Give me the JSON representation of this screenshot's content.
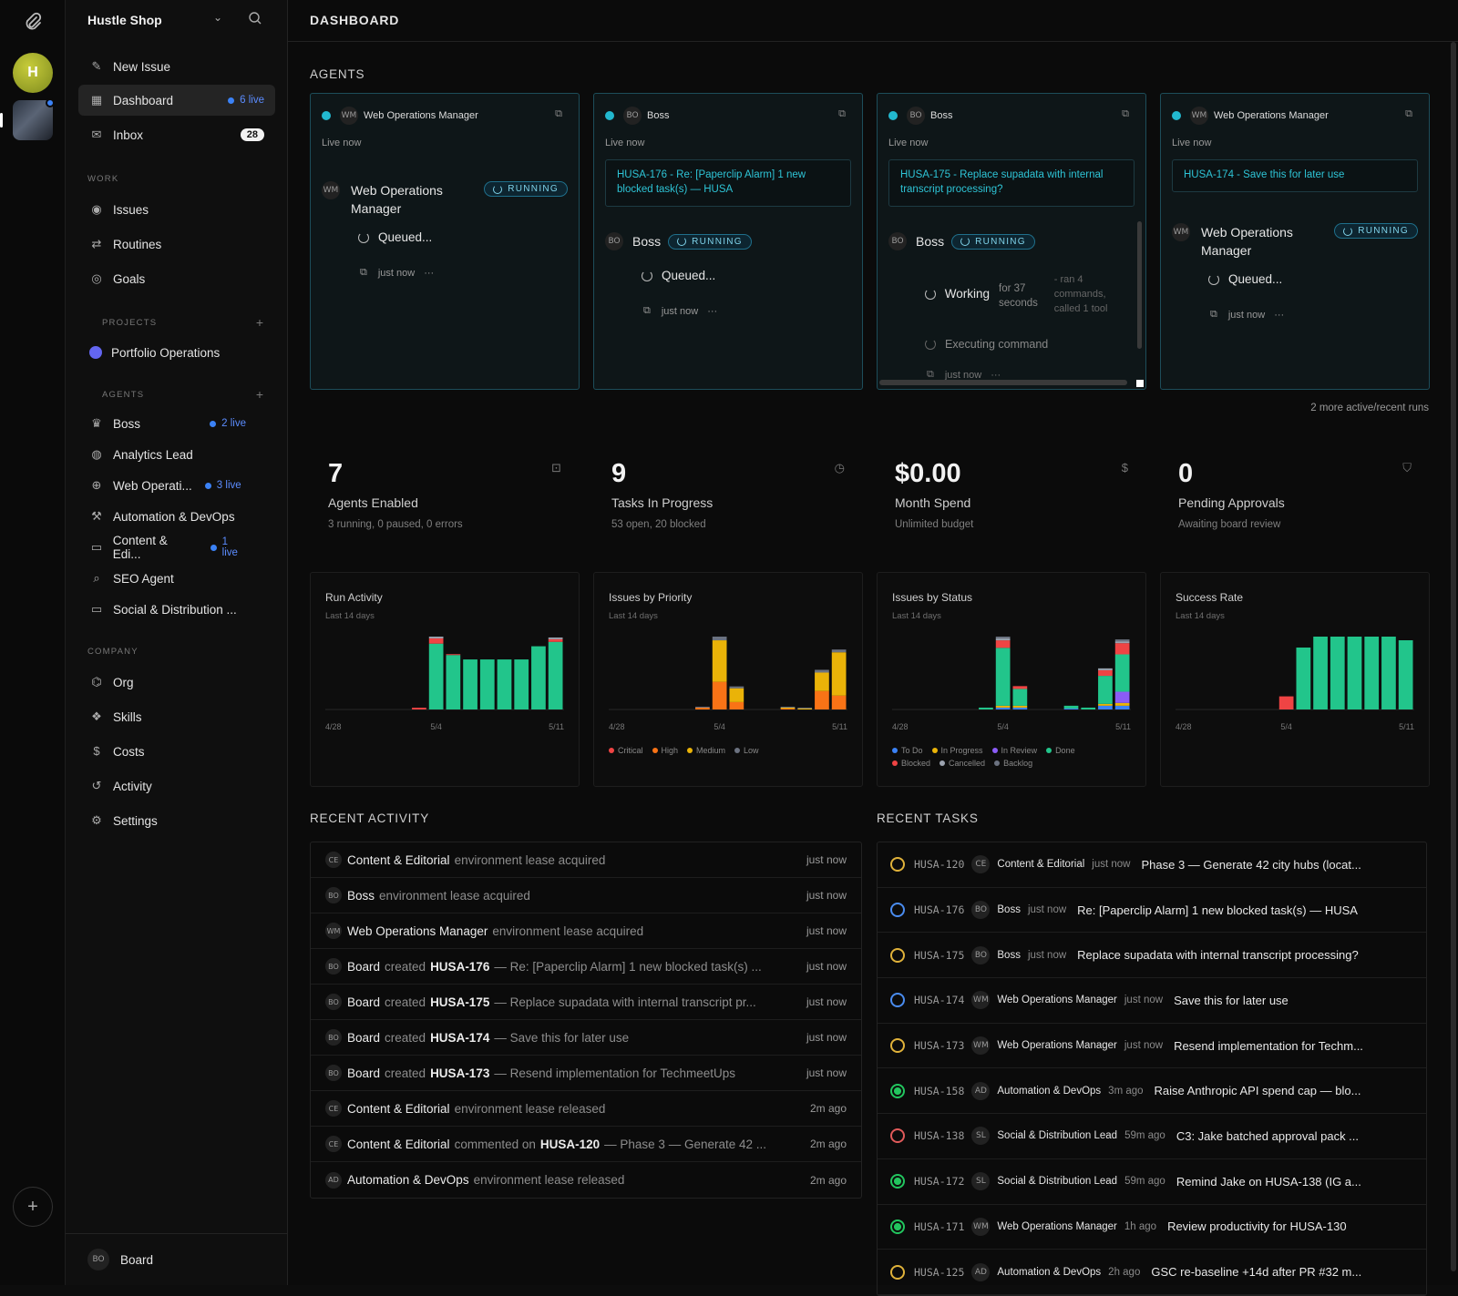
{
  "colors": {
    "accent": "#22b8cf",
    "live": "#3b82f6",
    "bar_green": "#22c58b",
    "critical": "#ef4444",
    "high": "#f97316",
    "medium": "#eab308",
    "low": "#6b7280"
  },
  "rail": {
    "avatar_letter": "H",
    "add_icon": "plus-icon"
  },
  "side": {
    "workspace": "Hustle Shop",
    "nav": {
      "new_issue": "New Issue",
      "dashboard": "Dashboard",
      "dashboard_badge": "6 live",
      "inbox": "Inbox",
      "inbox_count": "28"
    },
    "work_label": "WORK",
    "work": [
      "Issues",
      "Routines",
      "Goals"
    ],
    "projects_label": "PROJECTS",
    "projects": [
      "Portfolio Operations"
    ],
    "agents_label": "AGENTS",
    "agents": [
      {
        "name": "Boss",
        "badge": "2 live"
      },
      {
        "name": "Analytics Lead",
        "badge": ""
      },
      {
        "name": "Web Operati...",
        "badge": "3 live"
      },
      {
        "name": "Automation & DevOps",
        "badge": ""
      },
      {
        "name": "Content & Edi...",
        "badge": "1 live"
      },
      {
        "name": "SEO Agent",
        "badge": ""
      },
      {
        "name": "Social & Distribution ...",
        "badge": ""
      }
    ],
    "company_label": "COMPANY",
    "company": [
      "Org",
      "Skills",
      "Costs",
      "Activity",
      "Settings"
    ],
    "footer": {
      "initials": "BO",
      "name": "Board"
    }
  },
  "header": {
    "title": "DASHBOARD"
  },
  "agents_section": {
    "title": "AGENTS",
    "more": "2 more active/recent runs",
    "cards": [
      {
        "initials": "WM",
        "name": "Web Operations Manager",
        "live": "Live now",
        "issue": "",
        "agent_initials": "WM",
        "agent": "Web Operations Manager",
        "badge": "RUNNING",
        "status": "Queued...",
        "time": "just now",
        "more": "···"
      },
      {
        "initials": "BO",
        "name": "Boss",
        "live": "Live now",
        "issue": "HUSA-176 - Re: [Paperclip Alarm] 1 new blocked task(s) — HUSA",
        "agent_initials": "BO",
        "agent": "Boss",
        "badge": "RUNNING",
        "status": "Queued...",
        "time": "just now",
        "more": "···"
      },
      {
        "initials": "BO",
        "name": "Boss",
        "live": "Live now",
        "issue": "HUSA-175 - Replace supadata with internal transcript processing?",
        "agent_initials": "BO",
        "agent": "Boss",
        "badge": "RUNNING",
        "status": "Working",
        "status_detail": "for 37 seconds",
        "status_extra": "- ran 4 commands, called 1 tool",
        "sub_status": "Executing command",
        "time": "just now",
        "more": "···"
      },
      {
        "initials": "WM",
        "name": "Web Operations Manager",
        "live": "Live now",
        "issue": "HUSA-174 - Save this for later use",
        "agent_initials": "WM",
        "agent": "Web Operations Manager",
        "badge": "RUNNING",
        "status": "Queued...",
        "time": "just now",
        "more": "···"
      }
    ]
  },
  "stats": [
    {
      "value": "7",
      "label": "Agents Enabled",
      "sub": "3 running, 0 paused, 0 errors",
      "icon": "bot-icon"
    },
    {
      "value": "9",
      "label": "Tasks In Progress",
      "sub": "53 open, 20 blocked",
      "icon": "clock-icon"
    },
    {
      "value": "$0.00",
      "label": "Month Spend",
      "sub": "Unlimited budget",
      "icon": "dollar-icon"
    },
    {
      "value": "0",
      "label": "Pending Approvals",
      "sub": "Awaiting board review",
      "icon": "shield-icon"
    }
  ],
  "chart_data": [
    {
      "type": "bar",
      "title": "Run Activity",
      "subtitle": "Last 14 days",
      "x_ticks": [
        "4/28",
        "5/4",
        "5/11"
      ],
      "series": [
        {
          "color": "#22c58b",
          "values": [
            0,
            0,
            0,
            0,
            0,
            0,
            75,
            62,
            57,
            57,
            57,
            57,
            72,
            77
          ]
        },
        {
          "color": "#ef4444",
          "values": [
            0,
            0,
            0,
            0,
            0,
            2,
            6,
            1,
            0,
            0,
            0,
            0,
            0,
            3
          ]
        },
        {
          "color": "#9ca3af",
          "values": [
            0,
            0,
            0,
            0,
            0,
            0,
            2,
            0,
            0,
            0,
            0,
            0,
            0,
            2
          ]
        }
      ]
    },
    {
      "type": "bar",
      "title": "Issues by Priority",
      "subtitle": "Last 14 days",
      "x_ticks": [
        "4/28",
        "5/4",
        "5/11"
      ],
      "legend": [
        "Critical",
        "High",
        "Medium",
        "Low"
      ],
      "series": [
        {
          "name": "Critical",
          "color": "#ef4444",
          "values": [
            0,
            0,
            0,
            0,
            0,
            0,
            0,
            0,
            0,
            0,
            0,
            0,
            0,
            0
          ]
        },
        {
          "name": "High",
          "color": "#f97316",
          "values": [
            0,
            0,
            0,
            0,
            0,
            2,
            30,
            8,
            0,
            0,
            1,
            0,
            20,
            15
          ]
        },
        {
          "name": "Medium",
          "color": "#eab308",
          "values": [
            0,
            0,
            0,
            0,
            0,
            0,
            45,
            15,
            0,
            0,
            1,
            1,
            20,
            47
          ]
        },
        {
          "name": "Low",
          "color": "#6b7280",
          "values": [
            0,
            0,
            0,
            0,
            0,
            1,
            4,
            2,
            0,
            0,
            1,
            1,
            3,
            3
          ]
        }
      ]
    },
    {
      "type": "bar",
      "title": "Issues by Status",
      "subtitle": "Last 14 days",
      "x_ticks": [
        "4/28",
        "5/4",
        "5/11"
      ],
      "legend": [
        "To Do",
        "In Progress",
        "In Review",
        "Done",
        "Blocked",
        "Cancelled",
        "Backlog"
      ],
      "series": [
        {
          "name": "To Do",
          "color": "#3b82f6",
          "values": [
            0,
            0,
            0,
            0,
            0,
            0,
            2,
            2,
            0,
            0,
            1,
            0,
            4,
            4
          ]
        },
        {
          "name": "In Progress",
          "color": "#eab308",
          "values": [
            0,
            0,
            0,
            0,
            0,
            0,
            2,
            2,
            0,
            0,
            0,
            0,
            2,
            3
          ]
        },
        {
          "name": "In Review",
          "color": "#8b5cf6",
          "values": [
            0,
            0,
            0,
            0,
            0,
            0,
            0,
            0,
            0,
            0,
            0,
            0,
            0,
            12
          ]
        },
        {
          "name": "Done",
          "color": "#22c58b",
          "values": [
            0,
            0,
            0,
            0,
            0,
            2,
            62,
            18,
            0,
            0,
            3,
            2,
            30,
            40
          ]
        },
        {
          "name": "Blocked",
          "color": "#ef4444",
          "values": [
            0,
            0,
            0,
            0,
            0,
            0,
            8,
            3,
            0,
            0,
            0,
            0,
            6,
            12
          ]
        },
        {
          "name": "Cancelled",
          "color": "#9ca3af",
          "values": [
            0,
            0,
            0,
            0,
            0,
            0,
            2,
            0,
            0,
            0,
            0,
            0,
            2,
            2
          ]
        },
        {
          "name": "Backlog",
          "color": "#6b7280",
          "values": [
            0,
            0,
            0,
            0,
            0,
            0,
            2,
            0,
            0,
            0,
            0,
            0,
            0,
            2
          ]
        }
      ]
    },
    {
      "type": "bar",
      "title": "Success Rate",
      "subtitle": "Last 14 days",
      "x_ticks": [
        "4/28",
        "5/4",
        "5/11"
      ],
      "series": [
        {
          "color": "#22c58b",
          "values": [
            0,
            0,
            0,
            0,
            0,
            0,
            0,
            85,
            100,
            100,
            100,
            100,
            100,
            95
          ]
        },
        {
          "color": "#ef4444",
          "values": [
            0,
            0,
            0,
            0,
            0,
            0,
            18,
            0,
            0,
            0,
            0,
            0,
            0,
            0
          ]
        }
      ]
    }
  ],
  "recent_activity": {
    "title": "RECENT ACTIVITY",
    "rows": [
      {
        "av": "CE",
        "who": "Content & Editorial",
        "verb": "environment lease acquired",
        "issue": "",
        "text": "",
        "time": "just now"
      },
      {
        "av": "BO",
        "who": "Boss",
        "verb": "environment lease acquired",
        "issue": "",
        "text": "",
        "time": "just now"
      },
      {
        "av": "WM",
        "who": "Web Operations Manager",
        "verb": "environment lease acquired",
        "issue": "",
        "text": "",
        "time": "just now"
      },
      {
        "av": "BO",
        "who": "Board",
        "verb": "created",
        "issue": "HUSA-176",
        "text": "— Re: [Paperclip Alarm] 1 new blocked task(s) ...",
        "time": "just now"
      },
      {
        "av": "BO",
        "who": "Board",
        "verb": "created",
        "issue": "HUSA-175",
        "text": "— Replace supadata with internal transcript pr...",
        "time": "just now"
      },
      {
        "av": "BO",
        "who": "Board",
        "verb": "created",
        "issue": "HUSA-174",
        "text": "— Save this for later use",
        "time": "just now"
      },
      {
        "av": "BO",
        "who": "Board",
        "verb": "created",
        "issue": "HUSA-173",
        "text": "— Resend implementation for TechmeetUps",
        "time": "just now"
      },
      {
        "av": "CE",
        "who": "Content & Editorial",
        "verb": "environment lease released",
        "issue": "",
        "text": "",
        "time": "2m ago"
      },
      {
        "av": "CE",
        "who": "Content & Editorial",
        "verb": "commented on",
        "issue": "HUSA-120",
        "text": "— Phase 3 — Generate 42 ...",
        "time": "2m ago"
      },
      {
        "av": "AD",
        "who": "Automation & DevOps",
        "verb": "environment lease released",
        "issue": "",
        "text": "",
        "time": "2m ago"
      }
    ]
  },
  "recent_tasks": {
    "title": "RECENT TASKS",
    "rows": [
      {
        "status": "yellow",
        "id": "HUSA-120",
        "av": "CE",
        "agent": "Content & Editorial",
        "time": "just now",
        "title": "Phase 3 — Generate 42 city hubs (locat..."
      },
      {
        "status": "blue",
        "id": "HUSA-176",
        "av": "BO",
        "agent": "Boss",
        "time": "just now",
        "title": "Re: [Paperclip Alarm] 1 new blocked task(s) — HUSA"
      },
      {
        "status": "yellow",
        "id": "HUSA-175",
        "av": "BO",
        "agent": "Boss",
        "time": "just now",
        "title": "Replace supadata with internal transcript processing?"
      },
      {
        "status": "blue",
        "id": "HUSA-174",
        "av": "WM",
        "agent": "Web Operations Manager",
        "time": "just now",
        "title": "Save this for later use"
      },
      {
        "status": "yellow",
        "id": "HUSA-173",
        "av": "WM",
        "agent": "Web Operations Manager",
        "time": "just now",
        "title": "Resend implementation for Techm..."
      },
      {
        "status": "green",
        "id": "HUSA-158",
        "av": "AD",
        "agent": "Automation & DevOps",
        "time": "3m ago",
        "title": "Raise Anthropic API spend cap — blo..."
      },
      {
        "status": "red",
        "id": "HUSA-138",
        "av": "SL",
        "agent": "Social & Distribution Lead",
        "time": "59m ago",
        "title": "C3: Jake batched approval pack ..."
      },
      {
        "status": "green",
        "id": "HUSA-172",
        "av": "SL",
        "agent": "Social & Distribution Lead",
        "time": "59m ago",
        "title": "Remind Jake on HUSA-138 (IG a..."
      },
      {
        "status": "green",
        "id": "HUSA-171",
        "av": "WM",
        "agent": "Web Operations Manager",
        "time": "1h ago",
        "title": "Review productivity for HUSA-130"
      },
      {
        "status": "yellow",
        "id": "HUSA-125",
        "av": "AD",
        "agent": "Automation & DevOps",
        "time": "2h ago",
        "title": "GSC re-baseline +14d after PR #32 m..."
      }
    ]
  }
}
